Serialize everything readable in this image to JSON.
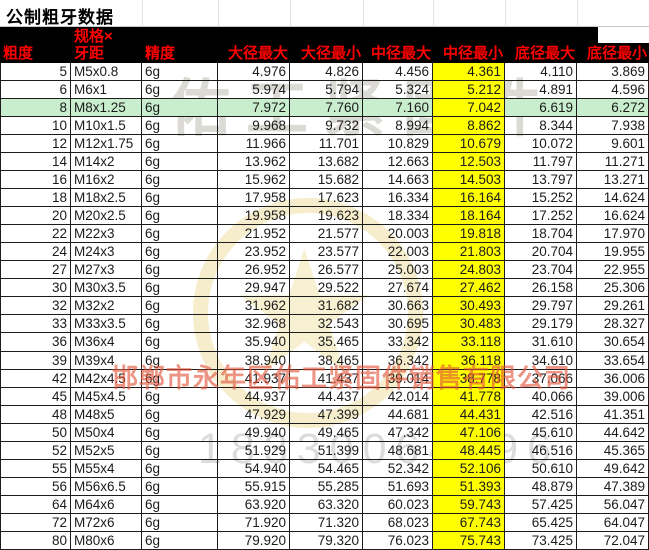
{
  "title": "公制粗牙数据",
  "table": {
    "headers": [
      "粗度",
      "规格×\n牙距",
      "精度",
      "大径最大",
      "大径最小",
      "中径最大",
      "中径最小",
      "底径最大",
      "底径最小"
    ],
    "yellow_column": "中径最小",
    "yellow_column_index": 6,
    "highlight_row_index": 2,
    "highlight_row_spec": "M8x1.25",
    "colors": {
      "header_bg": "#000000",
      "header_text": "#ff0000",
      "highlight_row_bg": "#c9eecd",
      "yellow_column_bg": "#ffff00"
    },
    "rows": [
      [
        "5",
        "M5x0.8",
        "6g",
        "4.976",
        "4.826",
        "4.456",
        "4.361",
        "4.110",
        "3.869"
      ],
      [
        "6",
        "M6x1",
        "6g",
        "5.974",
        "5.794",
        "5.324",
        "5.212",
        "4.891",
        "4.596"
      ],
      [
        "8",
        "M8x1.25",
        "6g",
        "7.972",
        "7.760",
        "7.160",
        "7.042",
        "6.619",
        "6.272"
      ],
      [
        "10",
        "M10x1.5",
        "6g",
        "9.968",
        "9.732",
        "8.994",
        "8.862",
        "8.344",
        "7.938"
      ],
      [
        "12",
        "M12x1.75",
        "6g",
        "11.966",
        "11.701",
        "10.829",
        "10.679",
        "10.072",
        "9.601"
      ],
      [
        "14",
        "M14x2",
        "6g",
        "13.962",
        "13.682",
        "12.663",
        "12.503",
        "11.797",
        "11.271"
      ],
      [
        "16",
        "M16x2",
        "6g",
        "15.962",
        "15.682",
        "14.663",
        "14.503",
        "13.797",
        "13.271"
      ],
      [
        "18",
        "M18x2.5",
        "6g",
        "17.958",
        "17.623",
        "16.334",
        "16.164",
        "15.252",
        "14.624"
      ],
      [
        "20",
        "M20x2.5",
        "6g",
        "19.958",
        "19.623",
        "18.334",
        "18.164",
        "17.252",
        "16.624"
      ],
      [
        "22",
        "M22x3",
        "6g",
        "21.952",
        "21.577",
        "20.003",
        "19.818",
        "18.704",
        "17.970"
      ],
      [
        "24",
        "M24x3",
        "6g",
        "23.952",
        "23.577",
        "22.003",
        "21.803",
        "20.704",
        "19.955"
      ],
      [
        "27",
        "M27x3",
        "6g",
        "26.952",
        "26.577",
        "25.003",
        "24.803",
        "23.704",
        "22.955"
      ],
      [
        "30",
        "M30x3.5",
        "6g",
        "29.947",
        "29.522",
        "27.674",
        "27.462",
        "26.158",
        "25.306"
      ],
      [
        "32",
        "M32x2",
        "6g",
        "31.962",
        "31.682",
        "30.663",
        "30.493",
        "29.797",
        "29.261"
      ],
      [
        "33",
        "M33x3.5",
        "6g",
        "32.968",
        "32.543",
        "30.695",
        "30.483",
        "29.179",
        "28.327"
      ],
      [
        "36",
        "M36x4",
        "6g",
        "35.940",
        "35.465",
        "33.342",
        "33.118",
        "31.610",
        "30.654"
      ],
      [
        "39",
        "M39x4",
        "6g",
        "38.940",
        "38.465",
        "36.342",
        "36.118",
        "34.610",
        "33.654"
      ],
      [
        "42",
        "M42x4.5",
        "6g",
        "41.937",
        "41.437",
        "39.014",
        "38.778",
        "37.066",
        "36.006"
      ],
      [
        "45",
        "M45x4.5",
        "6g",
        "44.937",
        "44.437",
        "42.014",
        "41.778",
        "40.066",
        "39.006"
      ],
      [
        "48",
        "M48x5",
        "6g",
        "47.929",
        "47.399",
        "44.681",
        "44.431",
        "42.516",
        "41.351"
      ],
      [
        "50",
        "M50x4",
        "6g",
        "49.940",
        "49.465",
        "47.342",
        "47.106",
        "45.610",
        "44.642"
      ],
      [
        "52",
        "M52x5",
        "6g",
        "51.929",
        "51.399",
        "48.681",
        "48.445",
        "46.516",
        "45.365"
      ],
      [
        "55",
        "M55x4",
        "6g",
        "54.940",
        "54.465",
        "52.342",
        "52.106",
        "50.610",
        "49.642"
      ],
      [
        "56",
        "M56x6.5",
        "6g",
        "55.915",
        "55.285",
        "51.693",
        "51.393",
        "48.879",
        "47.389"
      ],
      [
        "64",
        "M64x6",
        "6g",
        "63.920",
        "63.320",
        "60.023",
        "59.743",
        "57.425",
        "56.047"
      ],
      [
        "72",
        "M72x6",
        "6g",
        "71.920",
        "71.320",
        "68.023",
        "67.743",
        "65.425",
        "64.047"
      ],
      [
        "80",
        "M80x6",
        "6g",
        "79.920",
        "79.320",
        "76.023",
        "75.743",
        "73.425",
        "72.047"
      ]
    ]
  },
  "watermark": {
    "brand_text": "佑工紧固件",
    "company": "邯郸市永年区佑工紧固件销售有限公司",
    "phone": "18330064396",
    "star_icon": "★"
  }
}
